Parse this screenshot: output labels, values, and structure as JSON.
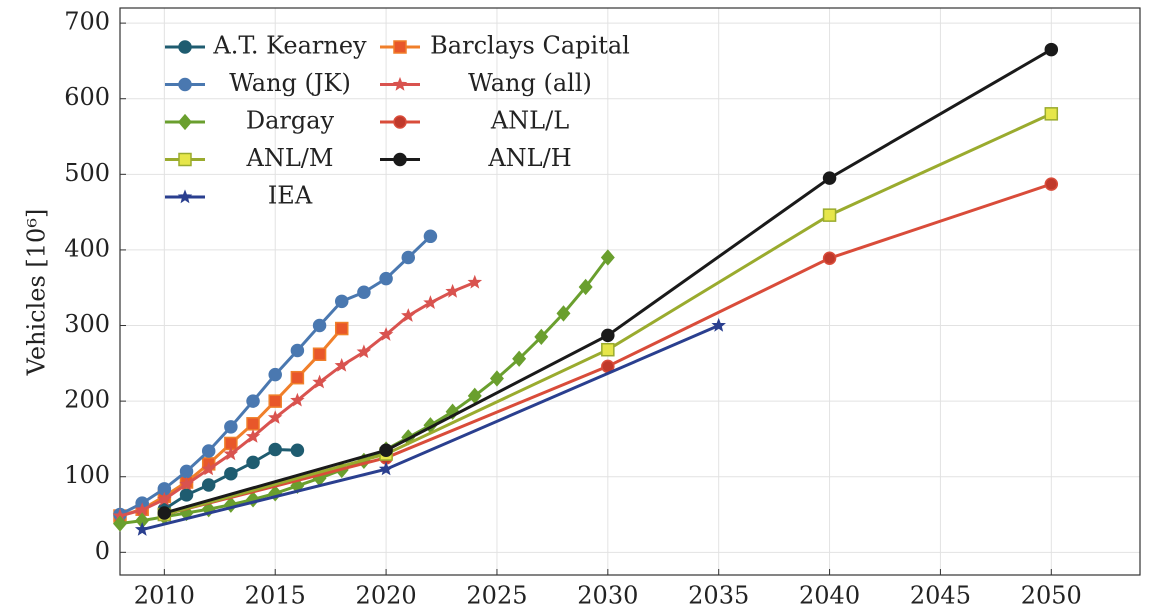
{
  "chart_data": {
    "type": "line",
    "y_label": "Vehicles [10⁶]",
    "xlim": [
      2008,
      2054
    ],
    "xticks": [
      2010,
      2015,
      2020,
      2025,
      2030,
      2035,
      2040,
      2045,
      2050
    ],
    "ylim": [
      -30,
      720
    ],
    "yticks": [
      0,
      100,
      200,
      300,
      400,
      500,
      600,
      700
    ],
    "grid": true,
    "legend": "upper left",
    "series": [
      {
        "name": "A.T. Kearney",
        "color": "#1f5c70",
        "marker": "circle",
        "marker_fill": "#1f5c70",
        "x": [
          2010,
          2011,
          2012,
          2013,
          2014,
          2015,
          2016
        ],
        "values": [
          57,
          76,
          89,
          104,
          119,
          136,
          135
        ]
      },
      {
        "name": "Barclays Capital",
        "color": "#f07f2a",
        "marker": "square",
        "marker_fill": "#e8572a",
        "x": [
          2008,
          2009,
          2010,
          2011,
          2012,
          2013,
          2014,
          2015,
          2016,
          2017,
          2018
        ],
        "values": [
          48,
          57,
          74,
          93,
          117,
          144,
          170,
          200,
          231,
          262,
          296
        ]
      },
      {
        "name": "Wang (JK)",
        "color": "#4a78b0",
        "marker": "circle",
        "marker_fill": "#4a78b0",
        "x": [
          2008,
          2009,
          2010,
          2011,
          2012,
          2013,
          2014,
          2015,
          2016,
          2017,
          2018,
          2019,
          2020,
          2021,
          2022
        ],
        "values": [
          50,
          65,
          84,
          107,
          134,
          166,
          200,
          235,
          267,
          300,
          332,
          344,
          362,
          390,
          418
        ]
      },
      {
        "name": "Wang (all)",
        "color": "#d9534f",
        "marker": "star",
        "marker_fill": "#d9534f",
        "x": [
          2008,
          2009,
          2010,
          2011,
          2012,
          2013,
          2014,
          2015,
          2016,
          2017,
          2018,
          2019,
          2020,
          2021,
          2022,
          2023,
          2024
        ],
        "values": [
          48,
          56,
          70,
          90,
          110,
          130,
          153,
          178,
          201,
          225,
          247,
          265,
          288,
          313,
          330,
          345,
          357
        ]
      },
      {
        "name": "Dargay",
        "color": "#6a9f2e",
        "marker": "diamond",
        "marker_fill": "#6a9f2e",
        "x": [
          2008,
          2009,
          2010,
          2011,
          2012,
          2013,
          2014,
          2015,
          2016,
          2017,
          2018,
          2019,
          2020,
          2021,
          2022,
          2023,
          2024,
          2025,
          2026,
          2027,
          2028,
          2029,
          2030
        ],
        "values": [
          38,
          42,
          47,
          52,
          57,
          63,
          70,
          78,
          88,
          98,
          109,
          121,
          136,
          152,
          168,
          186,
          207,
          230,
          256,
          285,
          316,
          351,
          390
        ]
      },
      {
        "name": "ANL/L",
        "color": "#d94c3a",
        "marker": "circle",
        "marker_fill": "#c0392b",
        "x": [
          2010,
          2020,
          2030,
          2040,
          2050
        ],
        "values": [
          50,
          125,
          246,
          389,
          487
        ]
      },
      {
        "name": "ANL/M",
        "color": "#9aab2e",
        "marker": "square",
        "marker_fill": "#e6e64a",
        "x": [
          2010,
          2020,
          2030,
          2040,
          2050
        ],
        "values": [
          50,
          130,
          268,
          446,
          580
        ]
      },
      {
        "name": "ANL/H",
        "color": "#1a1a1a",
        "marker": "circle",
        "marker_fill": "#1a1a1a",
        "x": [
          2010,
          2020,
          2030,
          2040,
          2050
        ],
        "values": [
          52,
          135,
          287,
          495,
          665
        ]
      },
      {
        "name": "IEA",
        "color": "#2a3f8f",
        "marker": "star",
        "marker_fill": "#2a3f8f",
        "x": [
          2009,
          2020,
          2035
        ],
        "values": [
          30,
          110,
          300
        ]
      }
    ]
  }
}
